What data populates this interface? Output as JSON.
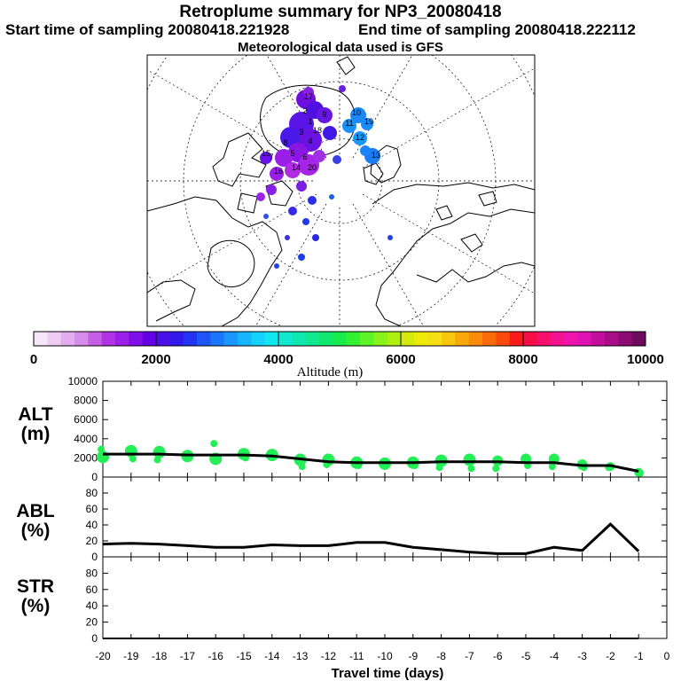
{
  "header": {
    "title": "Retroplume summary for NP3_20080418",
    "start": "Start time of sampling 20080418.221928",
    "end": "End time of sampling 20080418.222112",
    "met": "Meteorological data used is GFS"
  },
  "colorbar": {
    "ticks": [
      "0",
      "2000",
      "4000",
      "6000",
      "8000",
      "10000"
    ],
    "label": "Altitude (m)",
    "colors": [
      "#f6e6f8",
      "#eecdf4",
      "#e2aef0",
      "#d68ceb",
      "#c55fe6",
      "#b233e3",
      "#9b1fe6",
      "#7f10e8",
      "#6600e6",
      "#4b0fe8",
      "#3419ec",
      "#2233f3",
      "#1d55f7",
      "#1a77fa",
      "#1a97fc",
      "#17b5fd",
      "#14d2fd",
      "#12e6f0",
      "#10e8cf",
      "#10e8b0",
      "#10e890",
      "#10e870",
      "#18ec4c",
      "#33f033",
      "#5cf426",
      "#88f318",
      "#afef10",
      "#d3ea0a",
      "#eeea0a",
      "#f6e013",
      "#f7c70d",
      "#f8a80a",
      "#f98a0a",
      "#fa6a0a",
      "#fa4a0c",
      "#fa1a1c",
      "#fa0d46",
      "#f70f6c",
      "#f4128f",
      "#ef14ab",
      "#df13b1",
      "#c40e9c",
      "#a80c88",
      "#8c0b74",
      "#6e0b5c"
    ]
  },
  "map": {
    "labels": [
      "1",
      "2",
      "3",
      "4",
      "5",
      "6",
      "7",
      "8",
      "9",
      "10",
      "11",
      "12",
      "13",
      "14",
      "15",
      "16",
      "17",
      "18",
      "19",
      "20"
    ]
  },
  "chart_data": [
    {
      "type": "line",
      "panel": "ALT",
      "ylabel": "ALT\n(m)",
      "ylabel_lines": [
        "ALT",
        "(m)"
      ],
      "ylim": [
        0,
        10000
      ],
      "yticks": [
        "0",
        "2000",
        "4000",
        "6000",
        "8000",
        "10000"
      ],
      "x": [
        -20,
        -19,
        -18,
        -17,
        -16,
        -15,
        -14,
        -13,
        -12,
        -11,
        -10,
        -9,
        -8,
        -7,
        -6,
        -5,
        -4,
        -3,
        -2,
        -1
      ],
      "values": [
        2400,
        2400,
        2400,
        2300,
        2300,
        2300,
        2200,
        1900,
        1600,
        1500,
        1500,
        1500,
        1600,
        1600,
        1600,
        1500,
        1500,
        1200,
        1200,
        600
      ],
      "scatter_main": [
        2100,
        2700,
        2600,
        2200,
        1900,
        2400,
        2300,
        1800,
        1800,
        1500,
        1400,
        1500,
        1700,
        1800,
        1700,
        1900,
        1900,
        1300,
        1100,
        500
      ],
      "scatter_secondary": [
        2900,
        1900,
        1800,
        2000,
        3500,
        2000,
        2100,
        1100,
        1300,
        1200,
        1200,
        1200,
        1000,
        900,
        900,
        1200,
        1100,
        1000,
        1000,
        400
      ]
    },
    {
      "type": "line",
      "panel": "ABL",
      "ylabel": "ABL\n(%)",
      "ylabel_lines": [
        "ABL",
        "(%)"
      ],
      "ylim": [
        0,
        100
      ],
      "yticks": [
        "0",
        "20",
        "40",
        "60",
        "80"
      ],
      "x": [
        -20,
        -19,
        -18,
        -17,
        -16,
        -15,
        -14,
        -13,
        -12,
        -11,
        -10,
        -9,
        -8,
        -7,
        -6,
        -5,
        -4,
        -3,
        -2,
        -1
      ],
      "values": [
        16,
        17,
        16,
        14,
        12,
        12,
        15,
        14,
        14,
        18,
        18,
        12,
        9,
        6,
        4,
        4,
        12,
        8,
        41,
        7
      ]
    },
    {
      "type": "line",
      "panel": "STR",
      "ylabel": "STR\n(%)",
      "ylabel_lines": [
        "STR",
        "(%)"
      ],
      "ylim": [
        0,
        100
      ],
      "yticks": [
        "0",
        "20",
        "40",
        "60",
        "80"
      ],
      "x": [
        -20,
        -19,
        -18,
        -17,
        -16,
        -15,
        -14,
        -13,
        -12,
        -11,
        -10,
        -9,
        -8,
        -7,
        -6,
        -5,
        -4,
        -3,
        -2,
        -1
      ],
      "values": [
        0,
        0,
        0,
        0,
        0,
        0,
        0,
        0,
        0,
        0,
        0,
        0,
        0,
        0,
        0,
        0,
        0,
        0,
        0,
        0
      ]
    }
  ],
  "xaxis": {
    "ticks": [
      "-20",
      "-19",
      "-18",
      "-17",
      "-16",
      "-15",
      "-14",
      "-13",
      "-12",
      "-11",
      "-10",
      "-9",
      "-8",
      "-7",
      "-6",
      "-5",
      "-4",
      "-3",
      "-2",
      "-1",
      "0"
    ],
    "label": "Travel time (days)"
  }
}
